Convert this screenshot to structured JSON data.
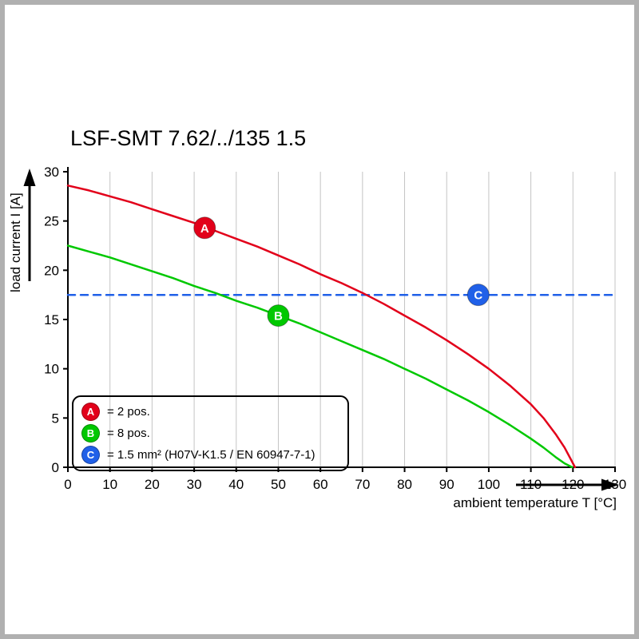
{
  "chart_data": {
    "type": "line",
    "title": "LSF-SMT 7.62/../135 1.5",
    "xlabel": "ambient temperature T [°C]",
    "ylabel": "load current I [A]",
    "xlim": [
      0,
      130
    ],
    "ylim": [
      0,
      30
    ],
    "x_ticks": [
      0,
      10,
      20,
      30,
      40,
      50,
      60,
      70,
      80,
      90,
      100,
      110,
      120,
      130
    ],
    "y_ticks": [
      0,
      5,
      10,
      15,
      20,
      25,
      30
    ],
    "grid": "vertical-only",
    "grid_color": "#c4c4c4",
    "axis_color": "#000000",
    "series": [
      {
        "id": "A",
        "legend_label": "= 2 pos.",
        "color": "#e2001a",
        "line_style": "solid",
        "points": [
          [
            0,
            28.6
          ],
          [
            5,
            28.1
          ],
          [
            10,
            27.5
          ],
          [
            15,
            26.9
          ],
          [
            20,
            26.2
          ],
          [
            25,
            25.5
          ],
          [
            30,
            24.8
          ],
          [
            35,
            24.0
          ],
          [
            40,
            23.2
          ],
          [
            45,
            22.4
          ],
          [
            50,
            21.5
          ],
          [
            55,
            20.6
          ],
          [
            60,
            19.6
          ],
          [
            65,
            18.7
          ],
          [
            70,
            17.7
          ],
          [
            75,
            16.6
          ],
          [
            80,
            15.4
          ],
          [
            85,
            14.2
          ],
          [
            90,
            12.9
          ],
          [
            95,
            11.5
          ],
          [
            100,
            10.0
          ],
          [
            105,
            8.3
          ],
          [
            110,
            6.4
          ],
          [
            113,
            5.0
          ],
          [
            116,
            3.3
          ],
          [
            118,
            2.0
          ],
          [
            119.5,
            0.8
          ],
          [
            120.5,
            0
          ]
        ]
      },
      {
        "id": "B",
        "legend_label": "= 8 pos.",
        "color": "#00c800",
        "line_style": "solid",
        "points": [
          [
            0,
            22.5
          ],
          [
            5,
            21.9
          ],
          [
            10,
            21.3
          ],
          [
            15,
            20.6
          ],
          [
            20,
            19.9
          ],
          [
            25,
            19.2
          ],
          [
            30,
            18.4
          ],
          [
            35,
            17.7
          ],
          [
            40,
            16.9
          ],
          [
            45,
            16.2
          ],
          [
            50,
            15.4
          ],
          [
            55,
            14.6
          ],
          [
            60,
            13.7
          ],
          [
            65,
            12.8
          ],
          [
            70,
            11.9
          ],
          [
            75,
            11.0
          ],
          [
            80,
            10.0
          ],
          [
            85,
            9.0
          ],
          [
            90,
            7.9
          ],
          [
            95,
            6.8
          ],
          [
            100,
            5.6
          ],
          [
            105,
            4.3
          ],
          [
            110,
            2.9
          ],
          [
            113,
            2.0
          ],
          [
            116,
            1.0
          ],
          [
            118,
            0.4
          ],
          [
            119.8,
            0
          ]
        ]
      },
      {
        "id": "C",
        "legend_label": "= 1.5 mm² (H07V-K1.5 / EN 60947-7-1)",
        "color": "#2060e8",
        "line_style": "dashed",
        "points": [
          [
            0,
            17.5
          ],
          [
            130,
            17.5
          ]
        ]
      }
    ],
    "markers": [
      {
        "letter": "A",
        "t": 32.5,
        "i": 24.3,
        "color": "#e2001a"
      },
      {
        "letter": "B",
        "t": 50,
        "i": 15.4,
        "color": "#00c800"
      },
      {
        "letter": "C",
        "t": 97.5,
        "i": 17.5,
        "color": "#2060e8"
      }
    ],
    "legend": {
      "position": "bottom-left",
      "items": [
        {
          "letter": "A",
          "label": "= 2 pos.",
          "color": "#e2001a"
        },
        {
          "letter": "B",
          "label": "= 8 pos.",
          "color": "#00c800"
        },
        {
          "letter": "C",
          "label": "= 1.5 mm² (H07V-K1.5 / EN 60947-7-1)",
          "color": "#2060e8"
        }
      ]
    }
  }
}
